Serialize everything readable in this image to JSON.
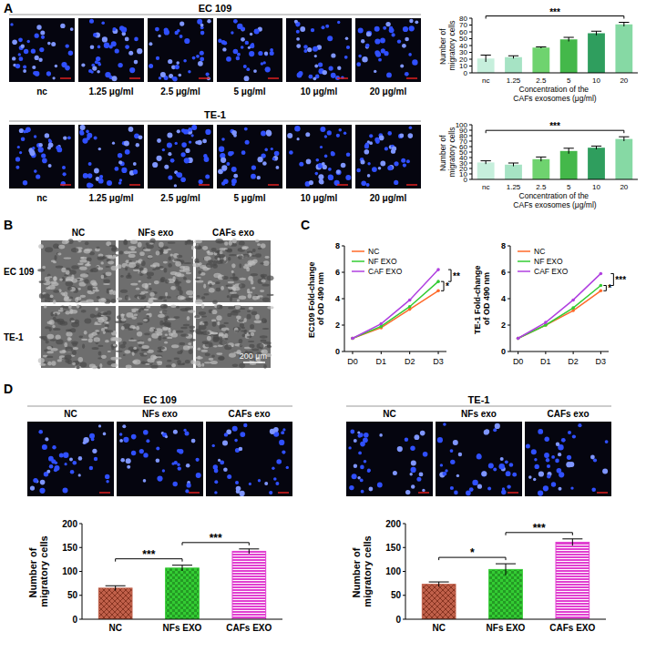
{
  "panels": {
    "labels": [
      "A",
      "B",
      "C",
      "D"
    ],
    "a": [
      {
        "title": "EC 109",
        "labels": [
          "nc",
          "1.25 μg/ml",
          "2.5 μg/ml",
          "5 μg/ml",
          "10 μg/ml",
          "20 μg/ml"
        ]
      },
      {
        "title": "TE-1",
        "labels": [
          "nc",
          "1.25 μg/ml",
          "2.5 μg/ml",
          "5 μg/ml",
          "10 μg/ml",
          "20 μg/ml"
        ]
      }
    ],
    "b": {
      "columns": [
        "NC",
        "NFs exo",
        "CAFs exo"
      ],
      "rows": [
        "EC 109",
        "TE-1"
      ],
      "scale_bar": "200 μm"
    },
    "d": [
      {
        "title": "EC 109",
        "labels": [
          "NC",
          "NFs exo",
          "CAFs exo"
        ]
      },
      {
        "title": "TE-1",
        "labels": [
          "NC",
          "NFs exo",
          "CAFs exo"
        ]
      }
    ]
  },
  "chart_data": [
    {
      "type": "bar",
      "categories": [
        "nc",
        "1.25",
        "2.5",
        "5",
        "10",
        "20"
      ],
      "values": [
        21,
        23,
        37,
        49,
        58,
        71
      ],
      "errors": [
        5,
        2,
        1,
        3,
        3,
        3
      ],
      "colors": [
        "#c6efdc",
        "#a6e3c4",
        "#6fd36f",
        "#44b84a",
        "#2f9e5e",
        "#86d9a4"
      ],
      "ylim": [
        0,
        80
      ],
      "yticks": [
        0,
        10,
        20,
        30,
        40,
        50,
        60,
        70,
        80
      ],
      "y_label": "Number of migratory cells",
      "x_label": "Concentration of the CAFs exosomes (μg/ml)",
      "annotations": [
        {
          "text": "***",
          "between": [
            "nc",
            "20"
          ]
        }
      ]
    },
    {
      "type": "bar",
      "categories": [
        "nc",
        "1.25",
        "2.5",
        "5",
        "10",
        "20"
      ],
      "values": [
        31,
        27,
        37,
        52,
        58,
        74
      ],
      "errors": [
        3,
        3,
        4,
        5,
        3,
        4
      ],
      "colors": [
        "#c6efdc",
        "#a6e3c4",
        "#6fd36f",
        "#44b84a",
        "#2f9e5e",
        "#86d9a4"
      ],
      "ylim": [
        0,
        100
      ],
      "yticks": [
        0,
        10,
        20,
        30,
        40,
        50,
        60,
        70,
        80,
        90,
        100
      ],
      "y_label": "Number of migratory cells",
      "x_label": "Concentration of the CAFs exosomes (μg/ml)",
      "annotations": [
        {
          "text": "***",
          "between": [
            "nc",
            "20"
          ]
        }
      ]
    },
    {
      "type": "line",
      "categories": [
        "D0",
        "D1",
        "D2",
        "D3"
      ],
      "series": [
        {
          "name": "NC",
          "color": "#ff6a2a",
          "values": [
            1,
            1.8,
            3.2,
            4.6
          ]
        },
        {
          "name": "NF EXO",
          "color": "#33cc33",
          "values": [
            1,
            1.9,
            3.4,
            5.3
          ]
        },
        {
          "name": "CAF EXO",
          "color": "#b040e0",
          "values": [
            1,
            2.1,
            3.9,
            6.2
          ]
        }
      ],
      "ylim": [
        0,
        8
      ],
      "yticks": [
        0,
        2,
        4,
        6,
        8
      ],
      "y_label": "EC109 Fold-change of OD 490 nm",
      "legend": "top-left",
      "marker": "circle",
      "annotations": [
        {
          "text": "**",
          "between": [
            "CAF EXO",
            "NF EXO"
          ]
        },
        {
          "text": "*",
          "between": [
            "NF EXO",
            "NC"
          ]
        }
      ]
    },
    {
      "type": "line",
      "categories": [
        "D0",
        "D1",
        "D2",
        "D3"
      ],
      "series": [
        {
          "name": "NC",
          "color": "#ff6a2a",
          "values": [
            1,
            2,
            3.1,
            4.6
          ]
        },
        {
          "name": "NF EXO",
          "color": "#33cc33",
          "values": [
            1,
            2,
            3.3,
            5.0
          ]
        },
        {
          "name": "CAF EXO",
          "color": "#b040e0",
          "values": [
            1,
            2.2,
            3.9,
            5.9
          ]
        }
      ],
      "ylim": [
        0,
        8
      ],
      "yticks": [
        0,
        2,
        4,
        6,
        8
      ],
      "y_label": "TE-1 Fold-change of OD 490 nm",
      "legend": "top-left",
      "marker": "circle",
      "annotations": [
        {
          "text": "***",
          "between": [
            "CAF EXO",
            "NF EXO"
          ]
        },
        {
          "text": "*",
          "between": [
            "NF EXO",
            "NC"
          ]
        }
      ]
    },
    {
      "type": "bar",
      "categories": [
        "NC",
        "NFs EXO",
        "CAFs EXO"
      ],
      "values": [
        65,
        107,
        142
      ],
      "errors": [
        5,
        6,
        5
      ],
      "colors": [
        "#c0604a",
        "#33cc33",
        "#e040d0"
      ],
      "ylim": [
        0,
        200
      ],
      "yticks": [
        0,
        50,
        100,
        150,
        200
      ],
      "y_label": "Number of migratory cells",
      "annotations": [
        {
          "text": "***",
          "between": [
            "NC",
            "NFs EXO"
          ]
        },
        {
          "text": "***",
          "between": [
            "NFs EXO",
            "CAFs EXO"
          ]
        }
      ]
    },
    {
      "type": "bar",
      "categories": [
        "NC",
        "NFs EXO",
        "CAFs EXO"
      ],
      "values": [
        73,
        104,
        161
      ],
      "errors": [
        5,
        12,
        7
      ],
      "colors": [
        "#c0604a",
        "#33cc33",
        "#e040d0"
      ],
      "ylim": [
        0,
        200
      ],
      "yticks": [
        0,
        50,
        100,
        150,
        200
      ],
      "y_label": "Number of migratory cells",
      "annotations": [
        {
          "text": "*",
          "between": [
            "NC",
            "NFs EXO"
          ]
        },
        {
          "text": "***",
          "between": [
            "NFs EXO",
            "CAFs EXO"
          ]
        }
      ]
    }
  ]
}
